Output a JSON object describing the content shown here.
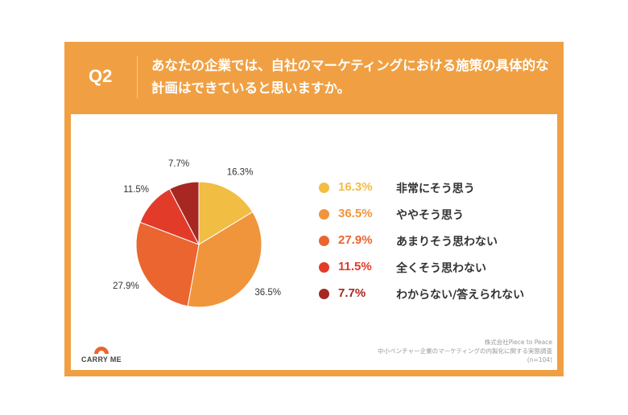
{
  "header": {
    "q_label": "Q2",
    "question": "あなたの企業では、自社のマーケティングにおける施策の具体的な計画はできていると思いますか。"
  },
  "colors": {
    "background": "#f0a043",
    "panel": "#ffffff",
    "slices": [
      "#f2bd43",
      "#f0953b",
      "#ea6530",
      "#e23b2a",
      "#a72822"
    ]
  },
  "chart_data": {
    "type": "pie",
    "categories": [
      "非常にそう思う",
      "ややそう思う",
      "あまりそう思わない",
      "全くそう思わない",
      "わからない/答えられない"
    ],
    "values": [
      16.3,
      36.5,
      27.9,
      11.5,
      7.7
    ],
    "labels": [
      "16.3%",
      "36.5%",
      "27.9%",
      "11.5%",
      "7.7%"
    ],
    "start_angle": "12 o'clock",
    "direction": "clockwise",
    "legend": "right"
  },
  "legend": {
    "items": [
      {
        "pct": "16.3%",
        "label": "非常にそう思う",
        "color": "#f2bd43"
      },
      {
        "pct": "36.5%",
        "label": "ややそう思う",
        "color": "#f0953b"
      },
      {
        "pct": "27.9%",
        "label": "あまりそう思わない",
        "color": "#ea6530"
      },
      {
        "pct": "11.5%",
        "label": "全くそう思わない",
        "color": "#e23b2a"
      },
      {
        "pct": "7.7%",
        "label": "わからない/答えられない",
        "color": "#a72822"
      }
    ]
  },
  "logo": {
    "text": "CARRY ME",
    "icon": "carry-me-logo-icon"
  },
  "source": {
    "line1": "株式会社Piece to Peace",
    "line2": "中小ベンチャー企業のマーケティングの内製化に関する実態調査",
    "line3": "(n=104)"
  }
}
